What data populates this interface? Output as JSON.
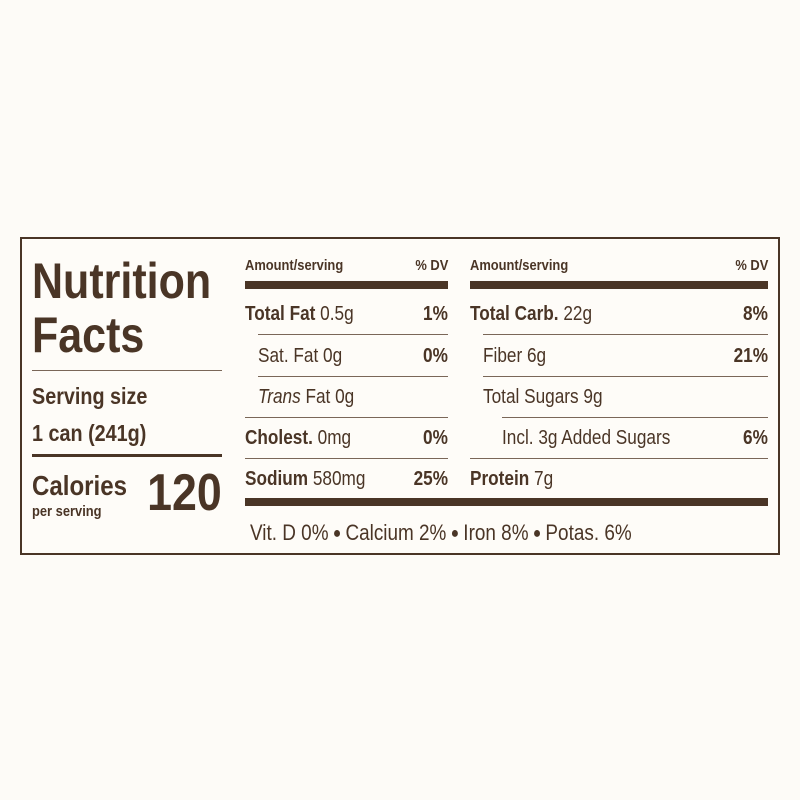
{
  "title": {
    "line1": "Nutrition",
    "line2": "Facts"
  },
  "serving": {
    "label": "Serving size",
    "value": "1 can (241g)"
  },
  "calories": {
    "label": "Calories",
    "sublabel": "per serving",
    "value": "120"
  },
  "left": {
    "header": {
      "amount": "Amount/serving",
      "dv": "% DV"
    },
    "rows": [
      {
        "name": "Total Fat",
        "amount": "0.5g",
        "dv": "1%"
      },
      {
        "name": "Sat. Fat",
        "amount": "0g",
        "dv": "0%"
      },
      {
        "italic": "Trans",
        "name": "Fat",
        "amount": "0g"
      },
      {
        "name": "Cholest.",
        "amount": "0mg",
        "dv": "0%"
      },
      {
        "name": "Sodium",
        "amount": "580mg",
        "dv": "25%"
      }
    ]
  },
  "right": {
    "header": {
      "amount": "Amount/serving",
      "dv": "% DV"
    },
    "rows": [
      {
        "name": "Total Carb.",
        "amount": "22g",
        "dv": "8%"
      },
      {
        "name": "Fiber",
        "amount": "6g",
        "dv": "21%"
      },
      {
        "name": "Total Sugars",
        "amount": "9g"
      },
      {
        "name": "Incl. 3g Added Sugars",
        "dv": "6%"
      },
      {
        "name": "Protein",
        "amount": "7g"
      }
    ]
  },
  "footer": [
    "Vit. D 0%",
    "Calcium 2%",
    "Iron 8%",
    "Potas. 6%"
  ]
}
